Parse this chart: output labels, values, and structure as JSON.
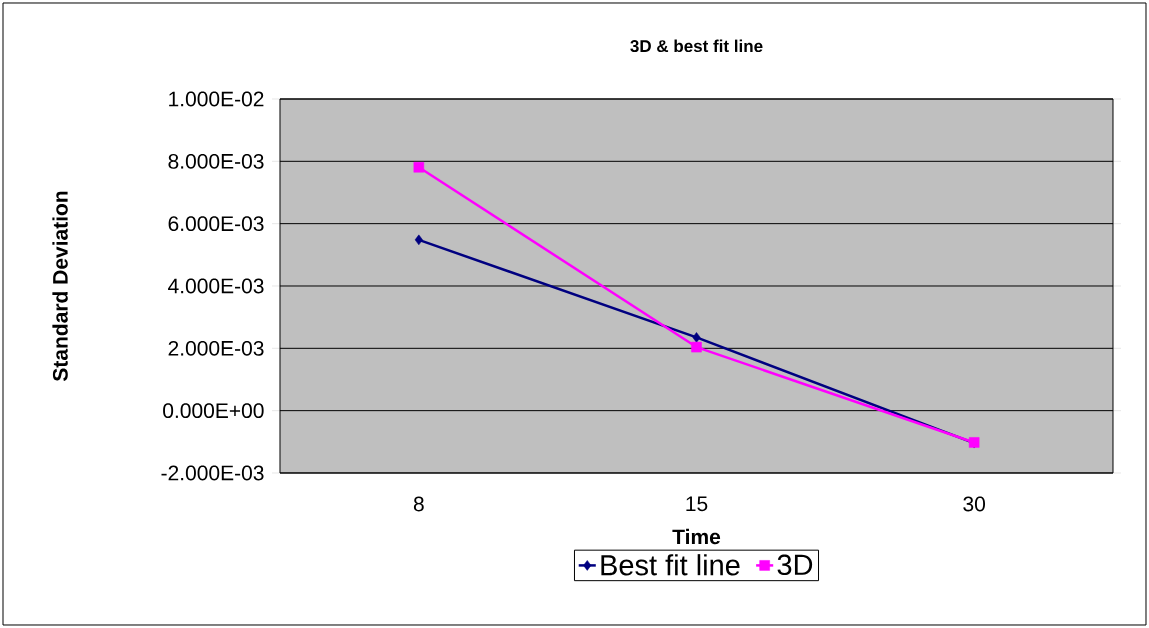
{
  "chart_data": {
    "type": "line",
    "title": "3D & best fit line",
    "xlabel": "Time",
    "ylabel": "Standard Deviation",
    "categories": [
      "8",
      "15",
      "30"
    ],
    "series": [
      {
        "name": "Best fit line",
        "color": "#000080",
        "marker": "diamond",
        "values": [
          0.00548,
          0.00235,
          -0.00104
        ]
      },
      {
        "name": "3D",
        "color": "#ff00ff",
        "marker": "square",
        "values": [
          0.00781,
          0.00204,
          -0.00102
        ]
      }
    ],
    "ylim": [
      -0.002,
      0.01
    ],
    "yticks": [
      {
        "value": -0.002,
        "label": "-2.000E-03"
      },
      {
        "value": 0,
        "label": "0.000E+00"
      },
      {
        "value": 0.002,
        "label": "2.000E-03"
      },
      {
        "value": 0.004,
        "label": "4.000E-03"
      },
      {
        "value": 0.006,
        "label": "6.000E-03"
      },
      {
        "value": 0.008,
        "label": "8.000E-03"
      },
      {
        "value": 0.01,
        "label": "1.000E-02"
      }
    ],
    "grid": "y",
    "legend": "bottom",
    "line_style": "solid"
  }
}
